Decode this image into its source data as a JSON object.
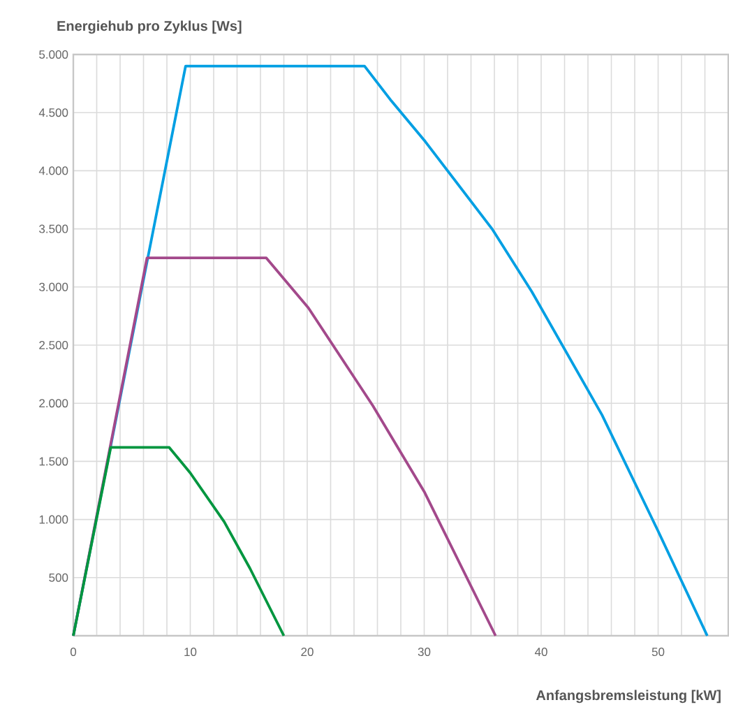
{
  "chart_data": {
    "type": "line",
    "ylabel": "Energiehub pro Zyklus [Ws]",
    "xlabel": "Anfangsbremsleistung [kW]",
    "xlim": [
      0,
      56
    ],
    "ylim": [
      0,
      5000
    ],
    "xticks": [
      0,
      {
        "value": 2,
        "label": null
      },
      {
        "value": 4,
        "label": null
      },
      {
        "value": 6,
        "label": null
      },
      {
        "value": 8,
        "label": null
      },
      10,
      {
        "value": 12,
        "label": null
      },
      {
        "value": 14,
        "label": null
      },
      {
        "value": 16,
        "label": null
      },
      {
        "value": 18,
        "label": null
      },
      20,
      {
        "value": 22,
        "label": null
      },
      {
        "value": 24,
        "label": null
      },
      {
        "value": 26,
        "label": null
      },
      {
        "value": 28,
        "label": null
      },
      30,
      {
        "value": 32,
        "label": null
      },
      {
        "value": 34,
        "label": null
      },
      {
        "value": 36,
        "label": null
      },
      {
        "value": 38,
        "label": null
      },
      40,
      {
        "value": 42,
        "label": null
      },
      {
        "value": 44,
        "label": null
      },
      {
        "value": 46,
        "label": null
      },
      {
        "value": 48,
        "label": null
      },
      50,
      {
        "value": 52,
        "label": null
      },
      {
        "value": 54,
        "label": null
      }
    ],
    "yticks": [
      {
        "value": 0,
        "label": null
      },
      {
        "value": 500,
        "label": "500"
      },
      {
        "value": 1000,
        "label": "1.000"
      },
      {
        "value": 1500,
        "label": "1.500"
      },
      {
        "value": 2000,
        "label": "2.000"
      },
      {
        "value": 2500,
        "label": "2.500"
      },
      {
        "value": 3000,
        "label": "3.000"
      },
      {
        "value": 3500,
        "label": "3.500"
      },
      {
        "value": 4000,
        "label": "4.000"
      },
      {
        "value": 4500,
        "label": "4.500"
      },
      {
        "value": 5000,
        "label": "5.000"
      }
    ],
    "grid": true,
    "marker": "none",
    "line_style": "solid",
    "series": [
      {
        "color": "#009fe3",
        "x": [
          0,
          9.6,
          24.9,
          27.2,
          30.1,
          35.8,
          39.2,
          45.2,
          50,
          54.2
        ],
        "values": [
          0,
          4900,
          4900,
          4600,
          4250,
          3500,
          2960,
          1900,
          900,
          0
        ]
      },
      {
        "color": "#a3498b",
        "x": [
          0,
          6.3,
          16.5,
          20.1,
          25.6,
          30,
          36.1
        ],
        "values": [
          0,
          3250,
          3250,
          2820,
          1980,
          1240,
          0
        ]
      },
      {
        "color": "#00963f",
        "x": [
          0,
          3.2,
          8.2,
          10,
          12.9,
          15.1,
          18
        ],
        "values": [
          0,
          1620,
          1620,
          1400,
          980,
          580,
          0
        ]
      }
    ]
  }
}
